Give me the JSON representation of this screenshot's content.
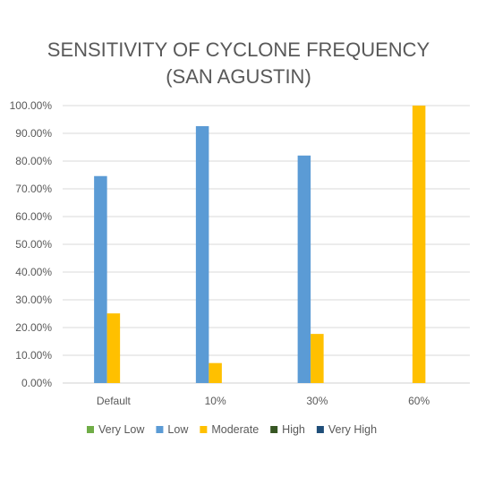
{
  "chart_data": {
    "type": "bar",
    "title_lines": [
      "SENSITIVITY OF CYCLONE FREQUENCY",
      "(SAN AGUSTIN)"
    ],
    "categories": [
      "Default",
      "10%",
      "30%",
      "60%"
    ],
    "y_ticks": [
      "0.00%",
      "10.00%",
      "20.00%",
      "30.00%",
      "40.00%",
      "50.00%",
      "60.00%",
      "70.00%",
      "80.00%",
      "90.00%",
      "100.00%"
    ],
    "ylim": [
      0,
      100
    ],
    "grid": true,
    "legend_position": "bottom",
    "series": [
      {
        "name": "Very Low",
        "color": "#70ad47",
        "values": [
          0,
          0,
          0,
          0
        ]
      },
      {
        "name": "Low",
        "color": "#5b9bd5",
        "values": [
          74.6,
          92.6,
          82.0,
          0
        ]
      },
      {
        "name": "Moderate",
        "color": "#ffc000",
        "values": [
          25.1,
          7.2,
          17.7,
          100
        ]
      },
      {
        "name": "High",
        "color": "#375623",
        "values": [
          0,
          0,
          0,
          0
        ]
      },
      {
        "name": "Very High",
        "color": "#1f4e79",
        "values": [
          0,
          0,
          0,
          0
        ]
      }
    ]
  }
}
